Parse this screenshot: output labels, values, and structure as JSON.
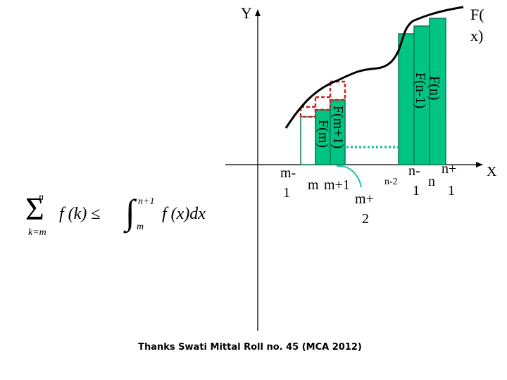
{
  "axes": {
    "y_label": "Y",
    "x_label": "X",
    "curve_label_line1": "F(",
    "curve_label_line2": "x)"
  },
  "colors": {
    "bar_fill": "#00c484",
    "bar_stroke": "#0a7a52",
    "dashed_box": "#cc2222",
    "dotted_line": "#22c4a0",
    "curve": "#000000"
  },
  "bar_labels": {
    "left_inner": "F(m)",
    "left_outer": "F(m+1)",
    "right_inner": "F(n-1)",
    "right_outer": "F(n)"
  },
  "ticks": {
    "m_minus_1_top": "m-",
    "m_minus_1_bottom": "1",
    "m": "m",
    "m_plus_1": "m+1",
    "m_plus_2_top": "m+",
    "m_plus_2_bottom": "2",
    "n_minus_2": "n-2",
    "n_minus_1_top": "n-",
    "n_minus_1_bottom": "1",
    "n": "n",
    "n_plus_1_top": "n+",
    "n_plus_1_bottom": "1"
  },
  "formula": {
    "sum_upper": "n",
    "sum_lower": "k=m",
    "summand": "f (k) ≤",
    "int_upper": "n+1",
    "int_lower": "m",
    "integrand": "f (x)dx"
  },
  "footer": "Thanks Swati Mittal Roll no. 45 (MCA 2012)"
}
